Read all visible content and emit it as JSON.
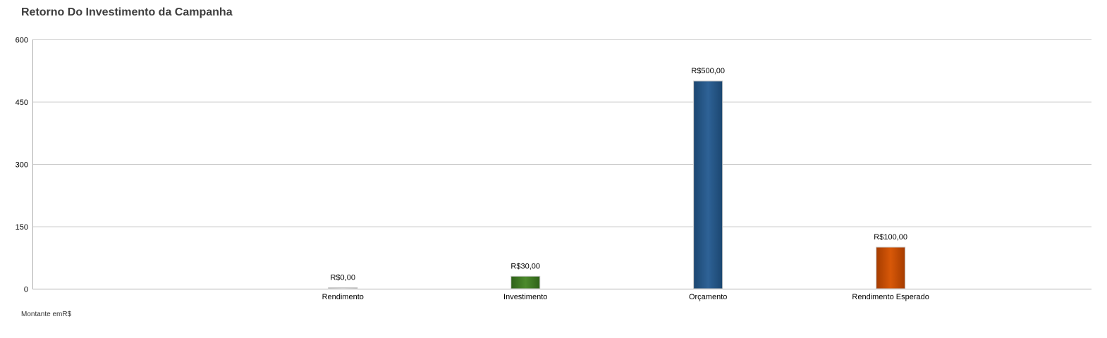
{
  "chart_data": {
    "type": "bar",
    "title": "Retorno Do Investimento da Campanha",
    "categories": [
      "Rendimento",
      "Investimento",
      "Orçamento",
      "Rendimento Esperado"
    ],
    "values": [
      0,
      30,
      500,
      100
    ],
    "value_labels": [
      "R$0,00",
      "R$30,00",
      "R$500,00",
      "R$100,00"
    ],
    "colors": [
      "#d9d9d9",
      "#3f7a24",
      "#26598c",
      "#c84d05"
    ],
    "y_ticks": [
      0,
      150,
      300,
      450,
      600
    ],
    "ylim": [
      0,
      600
    ],
    "ylabel": "",
    "xlabel": "",
    "grid": true,
    "legend": "none",
    "footnote": "Montante emR$"
  }
}
